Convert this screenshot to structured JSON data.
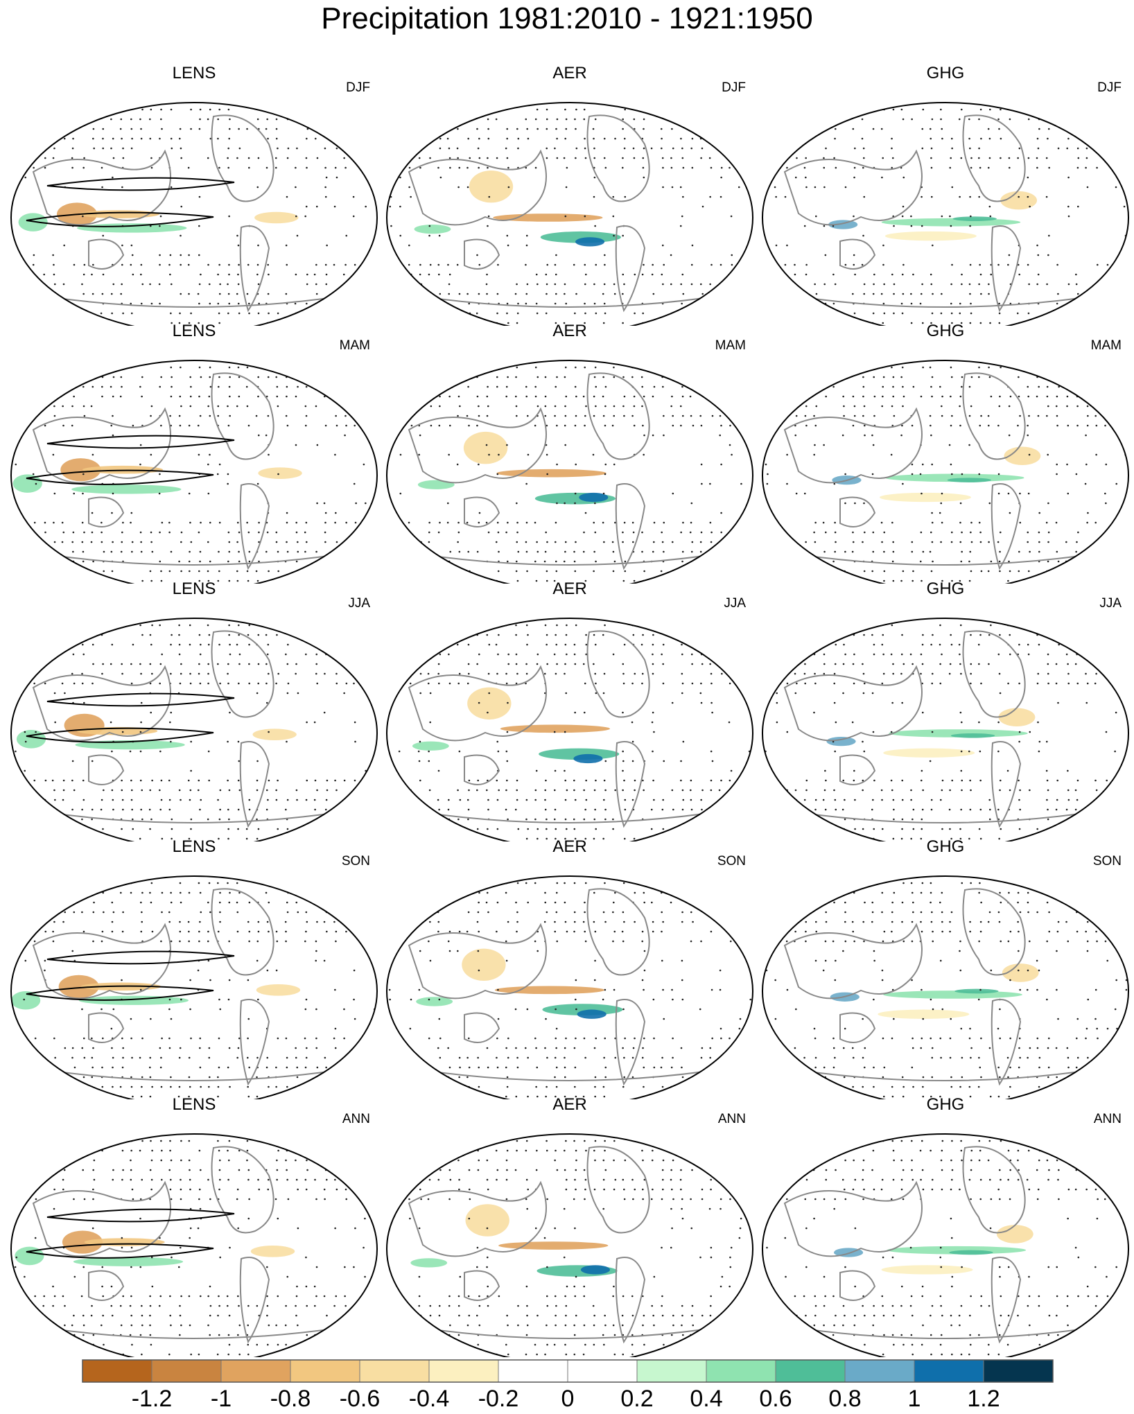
{
  "title": "Precipitation 1981:2010 - 1921:1950",
  "columns": [
    "LENS",
    "AER",
    "GHG"
  ],
  "seasons": [
    "DJF",
    "MAM",
    "JJA",
    "SON",
    "ANN"
  ],
  "colorbar": {
    "colors": [
      "#b5651d",
      "#c98440",
      "#e0a35f",
      "#f2c780",
      "#f8dea2",
      "#fcf0c0",
      "#ffffff",
      "#ffffff",
      "#c7f7cf",
      "#8fe3b0",
      "#4fbe98",
      "#6aaac8",
      "#0f6fab",
      "#05354f"
    ],
    "labels": [
      "-1.2",
      "-1",
      "-0.8",
      "-0.6",
      "-0.4",
      "-0.2",
      "0",
      "0.2",
      "0.4",
      "0.6",
      "0.8",
      "1",
      "1.2"
    ]
  }
}
